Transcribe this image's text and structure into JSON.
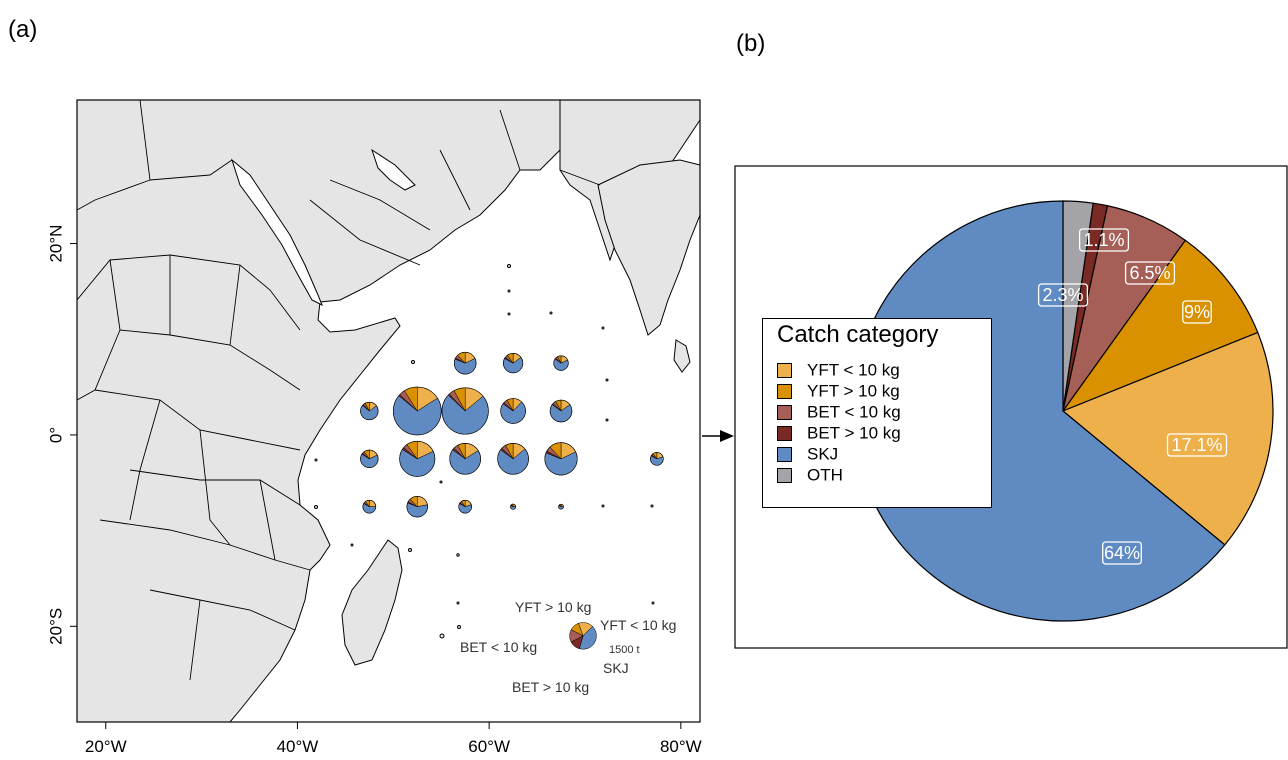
{
  "panels": {
    "a_label": "(a)",
    "b_label": "(b)"
  },
  "colors": {
    "yft_small": "#EDB04B",
    "yft_large": "#D99100",
    "bet_small": "#A65F57",
    "bet_large": "#7A2A25",
    "skj": "#608BC2",
    "oth": "#A4A4A8",
    "land": "#E5E5E5"
  },
  "map": {
    "x_ticks": [
      "20°W",
      "40°W",
      "60°W",
      "80°W"
    ],
    "y_ticks": [
      "20°N",
      "0°",
      "20°S"
    ],
    "size_legend": {
      "yft_large": "YFT > 10 kg",
      "yft_small": "YFT < 10 kg",
      "bet_small": "BET < 10 kg",
      "bet_large": "BET > 10 kg",
      "skj": "SKJ",
      "scale": "1500 t"
    }
  },
  "chart_data": [
    {
      "type": "scatter",
      "description_note": "",
      "xlim": [
        17,
        82
      ],
      "ylim": [
        -30,
        35
      ],
      "x_ticks": [
        20,
        40,
        60,
        80
      ],
      "y_ticks": [
        20,
        0,
        -20
      ],
      "points": [
        {
          "lon": 57.5,
          "lat": 7.5,
          "total": 1000,
          "shares": [
            0.18,
            0.12,
            0.05,
            0.02,
            0.63
          ]
        },
        {
          "lon": 62.5,
          "lat": 7.5,
          "total": 800,
          "shares": [
            0.15,
            0.1,
            0.05,
            0.02,
            0.68
          ]
        },
        {
          "lon": 67.5,
          "lat": 7.5,
          "total": 450,
          "shares": [
            0.18,
            0.08,
            0.05,
            0.02,
            0.67
          ]
        },
        {
          "lon": 47.5,
          "lat": 2.5,
          "total": 650,
          "shares": [
            0.15,
            0.08,
            0.04,
            0.02,
            0.71
          ]
        },
        {
          "lon": 52.5,
          "lat": 2.5,
          "total": 4800,
          "shares": [
            0.16,
            0.09,
            0.04,
            0.01,
            0.7
          ]
        },
        {
          "lon": 57.5,
          "lat": 2.5,
          "total": 4500,
          "shares": [
            0.14,
            0.08,
            0.04,
            0.01,
            0.73
          ]
        },
        {
          "lon": 62.5,
          "lat": 2.5,
          "total": 1300,
          "shares": [
            0.12,
            0.08,
            0.05,
            0.02,
            0.73
          ]
        },
        {
          "lon": 67.5,
          "lat": 2.5,
          "total": 1000,
          "shares": [
            0.15,
            0.08,
            0.05,
            0.02,
            0.7
          ]
        },
        {
          "lon": 47.5,
          "lat": -2.5,
          "total": 650,
          "shares": [
            0.18,
            0.1,
            0.04,
            0.02,
            0.66
          ]
        },
        {
          "lon": 52.5,
          "lat": -2.5,
          "total": 2600,
          "shares": [
            0.18,
            0.1,
            0.04,
            0.02,
            0.66
          ]
        },
        {
          "lon": 57.5,
          "lat": -2.5,
          "total": 2000,
          "shares": [
            0.16,
            0.08,
            0.05,
            0.02,
            0.69
          ]
        },
        {
          "lon": 62.5,
          "lat": -2.5,
          "total": 2000,
          "shares": [
            0.14,
            0.08,
            0.05,
            0.02,
            0.71
          ]
        },
        {
          "lon": 67.5,
          "lat": -2.5,
          "total": 2200,
          "shares": [
            0.18,
            0.12,
            0.05,
            0.02,
            0.63
          ]
        },
        {
          "lon": 77.5,
          "lat": -2.5,
          "total": 350,
          "shares": [
            0.2,
            0.1,
            0.05,
            0.02,
            0.63
          ]
        },
        {
          "lon": 47.5,
          "lat": -7.5,
          "total": 350,
          "shares": [
            0.25,
            0.1,
            0.05,
            0.02,
            0.58
          ]
        },
        {
          "lon": 52.5,
          "lat": -7.5,
          "total": 900,
          "shares": [
            0.22,
            0.12,
            0.05,
            0.02,
            0.59
          ]
        },
        {
          "lon": 57.5,
          "lat": -7.5,
          "total": 350,
          "shares": [
            0.2,
            0.1,
            0.05,
            0.02,
            0.63
          ]
        },
        {
          "lon": 62.5,
          "lat": -7.5,
          "total": 60,
          "shares": [
            0.2,
            0.1,
            0.05,
            0.02,
            0.63
          ]
        },
        {
          "lon": 67.5,
          "lat": -7.5,
          "total": 40,
          "shares": [
            0.2,
            0.1,
            0.05,
            0.02,
            0.63
          ]
        }
      ],
      "legend_pie": {
        "total": 1500,
        "shares": [
          0.18,
          0.12,
          0.15,
          0.13,
          0.42
        ]
      }
    },
    {
      "type": "pie",
      "legend_title": "Catch category",
      "slices": [
        {
          "name": "OTH",
          "legend_label": "OTH",
          "value": 2.3,
          "label": "2.3%",
          "color_key": "oth"
        },
        {
          "name": "BET > 10 kg",
          "legend_label": "BET > 10 kg",
          "value": 1.1,
          "label": "1.1%",
          "color_key": "bet_large"
        },
        {
          "name": "BET < 10 kg",
          "legend_label": "BET < 10 kg",
          "value": 6.5,
          "label": "6.5%",
          "color_key": "bet_small"
        },
        {
          "name": "YFT > 10 kg",
          "legend_label": "YFT > 10 kg",
          "value": 9,
          "label": "9%",
          "color_key": "yft_large"
        },
        {
          "name": "YFT < 10 kg",
          "legend_label": "YFT < 10 kg",
          "value": 17.1,
          "label": "17.1%",
          "color_key": "yft_small"
        },
        {
          "name": "SKJ",
          "legend_label": "SKJ",
          "value": 64,
          "label": "64%",
          "color_key": "skj"
        }
      ],
      "legend_order": [
        "YFT < 10 kg",
        "YFT > 10 kg",
        "BET < 10 kg",
        "BET > 10 kg",
        "SKJ",
        "OTH"
      ]
    }
  ]
}
